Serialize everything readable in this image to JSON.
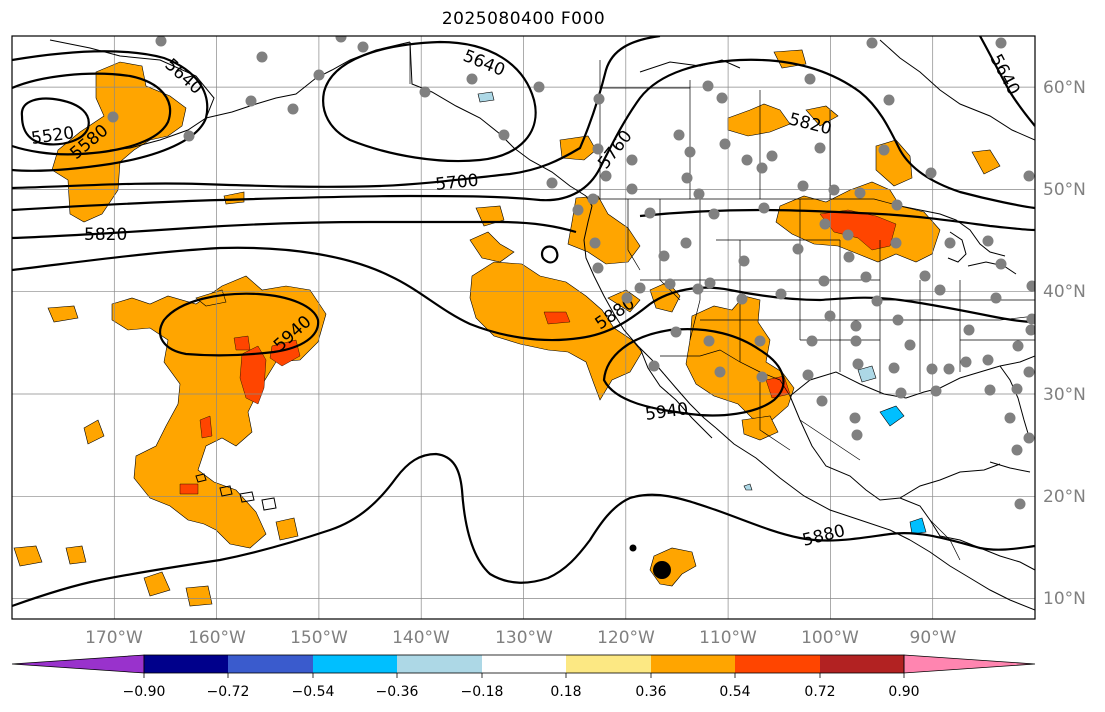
{
  "title": "2025080400 F000",
  "map": {
    "lon_range": [
      -180,
      -80
    ],
    "lat_range": [
      8,
      65
    ],
    "lon_labels": [
      "170°W",
      "160°W",
      "150°W",
      "140°W",
      "130°W",
      "120°W",
      "110°W",
      "100°W",
      "90°W"
    ],
    "lat_labels": [
      "60°N",
      "50°N",
      "40°N",
      "30°N",
      "20°N",
      "10°N"
    ],
    "contour_labels": [
      "5520",
      "5580",
      "5640",
      "5640",
      "5640",
      "5700",
      "5760",
      "5820",
      "5820",
      "5880",
      "5880",
      "5940",
      "5940"
    ],
    "fill_colors": {
      "light_orange": "#fce883",
      "orange": "#ffa500",
      "red_orange": "#ff4500",
      "light_blue": "#add8e6",
      "deep_sky_blue": "#00bfff"
    }
  },
  "colorbar": {
    "ticks": [
      "−0.90",
      "−0.72",
      "−0.54",
      "−0.36",
      "−0.18",
      "0.18",
      "0.36",
      "0.54",
      "0.72",
      "0.90"
    ],
    "colors": [
      "#9932cc",
      "#00008b",
      "#3a5bcd",
      "#00bfff",
      "#add8e6",
      "#ffffff",
      "#fce883",
      "#ffa500",
      "#ff4500",
      "#b22222",
      "#ff85b0"
    ]
  }
}
